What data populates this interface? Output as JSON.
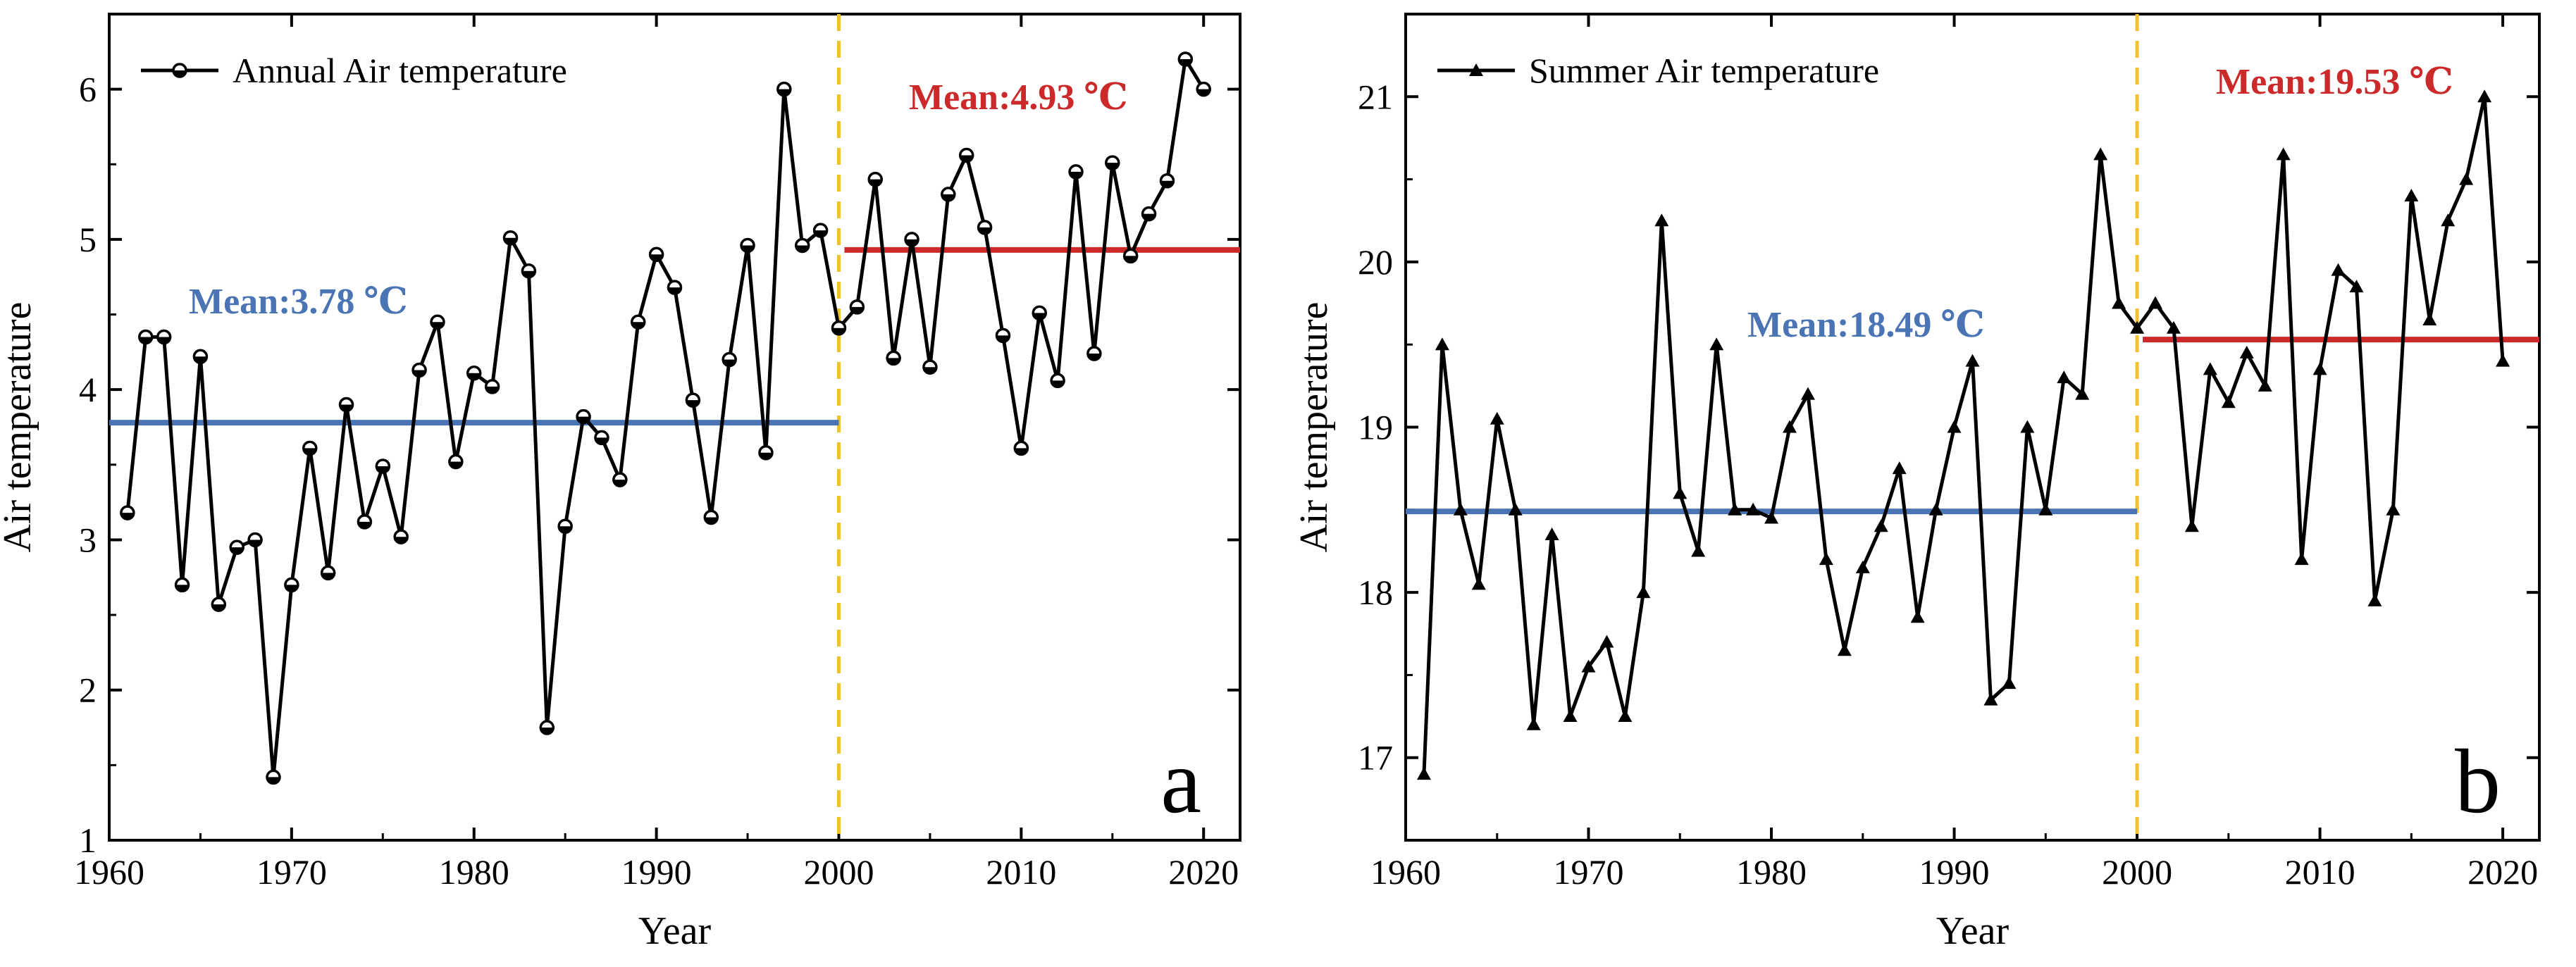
{
  "chart_data": [
    {
      "type": "line",
      "panel_label": "a",
      "xlabel": "Year",
      "ylabel": "Air temperature",
      "xlim": [
        1960,
        2022
      ],
      "ylim": [
        1,
        6.5
      ],
      "x_ticks": [
        1960,
        1970,
        1980,
        1990,
        2000,
        2010,
        2020
      ],
      "y_ticks": [
        1,
        2,
        3,
        4,
        5,
        6
      ],
      "legend_position": "top-left",
      "marker": "circle",
      "split_year": 2000,
      "series": [
        {
          "name": "Annual Air temperature",
          "x": [
            1961,
            1962,
            1963,
            1964,
            1965,
            1966,
            1967,
            1968,
            1969,
            1970,
            1971,
            1972,
            1973,
            1974,
            1975,
            1976,
            1977,
            1978,
            1979,
            1980,
            1981,
            1982,
            1983,
            1984,
            1985,
            1986,
            1987,
            1988,
            1989,
            1990,
            1991,
            1992,
            1993,
            1994,
            1995,
            1996,
            1997,
            1998,
            1999,
            2000,
            2001,
            2002,
            2003,
            2004,
            2005,
            2006,
            2007,
            2008,
            2009,
            2010,
            2011,
            2012,
            2013,
            2014,
            2015,
            2016,
            2017,
            2018,
            2019,
            2020
          ],
          "values": [
            3.18,
            4.35,
            4.35,
            2.7,
            4.22,
            2.57,
            2.95,
            3.0,
            1.42,
            2.7,
            3.61,
            2.78,
            3.9,
            3.12,
            3.49,
            3.02,
            4.13,
            4.45,
            3.52,
            4.11,
            4.02,
            5.01,
            4.79,
            1.75,
            3.09,
            3.82,
            3.68,
            3.4,
            4.45,
            4.9,
            4.68,
            3.93,
            3.15,
            4.2,
            4.96,
            3.58,
            6.0,
            4.96,
            5.06,
            4.41,
            4.55,
            5.4,
            4.21,
            5.0,
            4.15,
            5.3,
            5.56,
            5.08,
            4.36,
            3.61,
            4.51,
            4.06,
            5.45,
            4.24,
            5.51,
            4.89,
            5.17,
            5.39,
            6.2,
            6.0
          ]
        }
      ],
      "means": [
        {
          "label": "Mean:3.78 ℃",
          "value": 3.78,
          "x_range": [
            1960,
            2000
          ],
          "color": "#4a74b4"
        },
        {
          "label": "Mean:4.93 ℃",
          "value": 4.93,
          "x_range": [
            2000,
            2022
          ],
          "color": "#cc2a2a"
        }
      ],
      "divider_color": "#f2c12e"
    },
    {
      "type": "line",
      "panel_label": "b",
      "xlabel": "Year",
      "ylabel": "Air temperature",
      "xlim": [
        1960,
        2022
      ],
      "ylim": [
        16.5,
        21.5
      ],
      "x_ticks": [
        1960,
        1970,
        1980,
        1990,
        2000,
        2010,
        2020
      ],
      "y_ticks": [
        17,
        18,
        19,
        20,
        21
      ],
      "legend_position": "top-left",
      "marker": "triangle",
      "split_year": 2000,
      "series": [
        {
          "name": "Summer Air temperature",
          "x": [
            1961,
            1962,
            1963,
            1964,
            1965,
            1966,
            1967,
            1968,
            1969,
            1970,
            1971,
            1972,
            1973,
            1974,
            1975,
            1976,
            1977,
            1978,
            1979,
            1980,
            1981,
            1982,
            1983,
            1984,
            1985,
            1986,
            1987,
            1988,
            1989,
            1990,
            1991,
            1992,
            1993,
            1994,
            1995,
            1996,
            1997,
            1998,
            1999,
            2000,
            2001,
            2002,
            2003,
            2004,
            2005,
            2006,
            2007,
            2008,
            2009,
            2010,
            2011,
            2012,
            2013,
            2014,
            2015,
            2016,
            2017,
            2018,
            2019,
            2020
          ],
          "values": [
            16.9,
            19.5,
            18.5,
            18.05,
            19.05,
            18.5,
            17.2,
            18.35,
            17.25,
            17.55,
            17.7,
            17.25,
            18.0,
            20.25,
            18.6,
            18.25,
            19.5,
            18.5,
            18.5,
            18.45,
            19.0,
            19.2,
            18.2,
            17.65,
            18.15,
            18.4,
            18.75,
            17.85,
            18.5,
            19.0,
            19.4,
            17.35,
            17.45,
            19.0,
            18.5,
            19.3,
            19.2,
            20.65,
            19.75,
            19.6,
            19.75,
            19.6,
            18.4,
            19.35,
            19.15,
            19.45,
            19.25,
            20.65,
            18.2,
            19.35,
            19.95,
            19.85,
            17.95,
            18.5,
            20.4,
            19.65,
            20.25,
            20.5,
            21.0,
            19.4
          ]
        }
      ],
      "means": [
        {
          "label": "Mean:18.49 ℃",
          "value": 18.49,
          "x_range": [
            1960,
            2000
          ],
          "color": "#4a74b4"
        },
        {
          "label": "Mean:19.53 ℃",
          "value": 19.53,
          "x_range": [
            2000,
            2022
          ],
          "color": "#cc2a2a"
        }
      ],
      "divider_color": "#f2c12e"
    }
  ]
}
